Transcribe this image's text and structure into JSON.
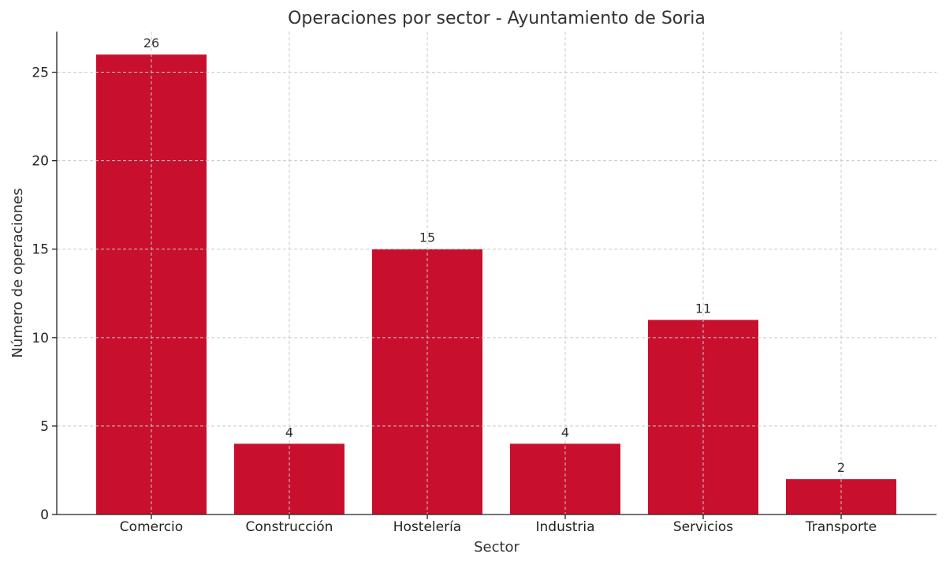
{
  "chart_data": {
    "type": "bar",
    "title": "Operaciones por sector - Ayuntamiento de Soria",
    "xlabel": "Sector",
    "ylabel": "Número de operaciones",
    "categories": [
      "Comercio",
      "Construcción",
      "Hostelería",
      "Industria",
      "Servicios",
      "Transporte"
    ],
    "values": [
      26,
      4,
      15,
      4,
      11,
      2
    ],
    "ylim": [
      0,
      27.3
    ],
    "yticks": [
      0,
      5,
      10,
      15,
      20,
      25
    ],
    "grid": true,
    "bar_color": "#c8102e",
    "show_data_labels": true
  }
}
